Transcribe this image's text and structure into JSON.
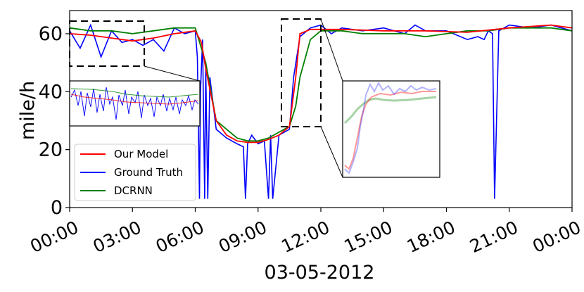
{
  "chart_data": {
    "type": "line",
    "title": "",
    "xlabel": "03-05-2012",
    "ylabel": "mile/h",
    "x_unit": "hours",
    "xlim": [
      0,
      24
    ],
    "ylim": [
      0,
      68
    ],
    "x_ticks": [
      0,
      3,
      6,
      9,
      12,
      15,
      18,
      21,
      24
    ],
    "x_tick_labels": [
      "00:00",
      "03:00",
      "06:00",
      "09:00",
      "12:00",
      "15:00",
      "18:00",
      "21:00",
      "00:00"
    ],
    "y_ticks": [
      0,
      20,
      40,
      60
    ],
    "y_tick_labels": [
      "0",
      "20",
      "40",
      "60"
    ],
    "grid": false,
    "legend": {
      "position": "lower-left",
      "entries": [
        {
          "label": "Our Model",
          "color": "#ff0000"
        },
        {
          "label": "Ground Truth",
          "color": "#0000ff"
        },
        {
          "label": "DCRNN",
          "color": "#008000"
        }
      ]
    },
    "series": [
      {
        "name": "Our Model",
        "color": "#ff0000",
        "x": [
          0,
          1,
          2,
          3,
          4,
          5,
          6,
          6.3,
          6.5,
          7,
          7.5,
          8,
          8.5,
          9,
          9.5,
          10,
          10.5,
          10.8,
          11,
          11.5,
          12,
          13,
          15,
          17,
          19,
          21,
          23,
          24
        ],
        "y": [
          60,
          59.5,
          58.5,
          57.5,
          58.5,
          60,
          61,
          57,
          48,
          30,
          25,
          23,
          22.5,
          22.5,
          23.5,
          25,
          28,
          45,
          60,
          61.5,
          61.5,
          61.5,
          61,
          61,
          60.5,
          62,
          63,
          62
        ]
      },
      {
        "name": "Ground Truth",
        "color": "#0000ff",
        "x": [
          0,
          0.5,
          1,
          1.5,
          2,
          2.5,
          3,
          3.5,
          4,
          4.5,
          5,
          5.5,
          6,
          6.1,
          6.2,
          6.25,
          6.35,
          6.45,
          6.5,
          6.6,
          6.7,
          7,
          7.5,
          8,
          8.3,
          8.4,
          8.5,
          8.7,
          9,
          9.3,
          9.5,
          9.6,
          9.7,
          10,
          10.5,
          10.7,
          11,
          11.5,
          12,
          12.5,
          13,
          14,
          15,
          16,
          16.5,
          17,
          18,
          19,
          19.5,
          19.8,
          20,
          20.2,
          20.3,
          20.5,
          21,
          22,
          23,
          24
        ],
        "y": [
          61,
          55,
          63,
          52,
          61,
          57,
          58,
          56,
          58,
          54,
          62,
          60,
          61,
          52,
          3,
          40,
          58,
          3,
          48,
          3,
          45,
          27,
          24,
          22,
          21,
          3,
          22,
          25,
          22,
          23,
          3,
          25,
          3,
          25,
          27,
          45,
          59,
          62,
          63,
          60,
          62,
          61,
          62,
          60,
          63,
          61,
          61,
          58,
          59,
          58,
          61,
          60,
          3,
          61,
          63,
          62,
          63,
          61
        ]
      },
      {
        "name": "DCRNN",
        "color": "#008000",
        "x": [
          0,
          1,
          2,
          3,
          4,
          5,
          6,
          6.5,
          7,
          7.5,
          8,
          8.5,
          9,
          9.5,
          10,
          10.5,
          10.8,
          11,
          11.5,
          12,
          13,
          14,
          15,
          16,
          17,
          18,
          19,
          20,
          21,
          22,
          23,
          24
        ],
        "y": [
          62,
          61,
          61,
          60,
          61,
          62,
          62,
          50,
          30,
          27,
          24,
          23,
          23,
          24,
          26,
          28,
          35,
          45,
          58,
          61,
          61,
          60,
          60,
          60,
          59,
          60,
          61,
          61,
          62,
          62,
          62,
          61
        ]
      }
    ]
  }
}
